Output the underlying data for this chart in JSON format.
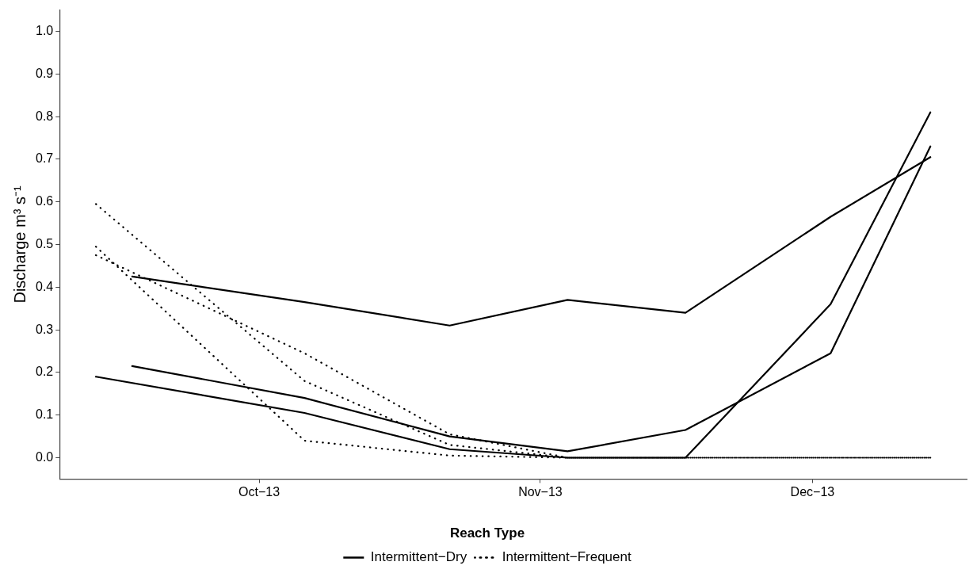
{
  "chart_data": {
    "type": "line",
    "ylabel": "Discharge m³ s⁻¹",
    "legend_title": "Reach Type",
    "legend": "bottom",
    "grid": false,
    "marker": "none",
    "xlim": [
      "2013-09-09",
      "2013-12-18"
    ],
    "xticks": [
      {
        "value": "2013-10-01",
        "label": "Oct−13"
      },
      {
        "value": "2013-11-01",
        "label": "Nov−13"
      },
      {
        "value": "2013-12-01",
        "label": "Dec−13"
      }
    ],
    "ylim": [
      -0.05,
      1.05
    ],
    "yticks": [
      {
        "value": 0,
        "label": "0.0"
      },
      {
        "value": 0.1,
        "label": "0.1"
      },
      {
        "value": 0.2,
        "label": "0.2"
      },
      {
        "value": 0.3,
        "label": "0.3"
      },
      {
        "value": 0.4,
        "label": "0.4"
      },
      {
        "value": 0.5,
        "label": "0.5"
      },
      {
        "value": 0.6,
        "label": "0.6"
      },
      {
        "value": 0.7,
        "label": "0.7"
      },
      {
        "value": 0.8,
        "label": "0.8"
      },
      {
        "value": 0.9,
        "label": "0.9"
      },
      {
        "value": 1,
        "label": "1.0"
      }
    ],
    "series": [
      {
        "name": "Intermittent−Dry",
        "color": "#000000",
        "line_style": "solid",
        "x": [
          "2013-09-17",
          "2013-10-06",
          "2013-10-22",
          "2013-11-04",
          "2013-11-17",
          "2013-12-03",
          "2013-12-14"
        ],
        "values": [
          0.425,
          0.365,
          0.31,
          0.37,
          0.34,
          0.565,
          0.705
        ]
      },
      {
        "color": "#000000",
        "line_style": "solid",
        "x": [
          "2013-09-17",
          "2013-10-06",
          "2013-10-22",
          "2013-11-04",
          "2013-11-17",
          "2013-12-03",
          "2013-12-14"
        ],
        "values": [
          0.215,
          0.14,
          0.05,
          0.015,
          0.065,
          0.245,
          0.73
        ]
      },
      {
        "color": "#000000",
        "line_style": "solid",
        "x": [
          "2013-09-13",
          "2013-10-06",
          "2013-10-22",
          "2013-11-04",
          "2013-11-17",
          "2013-12-03",
          "2013-12-14"
        ],
        "values": [
          0.19,
          0.105,
          0.02,
          0,
          0,
          0.36,
          0.81
        ]
      },
      {
        "name": "Intermittent−Frequent",
        "color": "#000000",
        "line_style": "dotted",
        "x": [
          "2013-09-13",
          "2013-10-06",
          "2013-10-22",
          "2013-11-04",
          "2013-11-17",
          "2013-12-03",
          "2013-12-14"
        ],
        "values": [
          0.595,
          0.18,
          0.03,
          0,
          0,
          0,
          0
        ]
      },
      {
        "color": "#000000",
        "line_style": "dotted",
        "x": [
          "2013-09-13",
          "2013-10-06",
          "2013-10-22",
          "2013-11-04",
          "2013-11-17",
          "2013-12-03",
          "2013-12-14"
        ],
        "values": [
          0.495,
          0.04,
          0.005,
          0,
          0,
          0,
          0
        ]
      },
      {
        "color": "#000000",
        "line_style": "dotted",
        "x": [
          "2013-09-13",
          "2013-10-06",
          "2013-10-22",
          "2013-11-04",
          "2013-11-17",
          "2013-12-03",
          "2013-12-14"
        ],
        "values": [
          0.475,
          0.245,
          0.055,
          0,
          0,
          0,
          0
        ]
      }
    ]
  }
}
